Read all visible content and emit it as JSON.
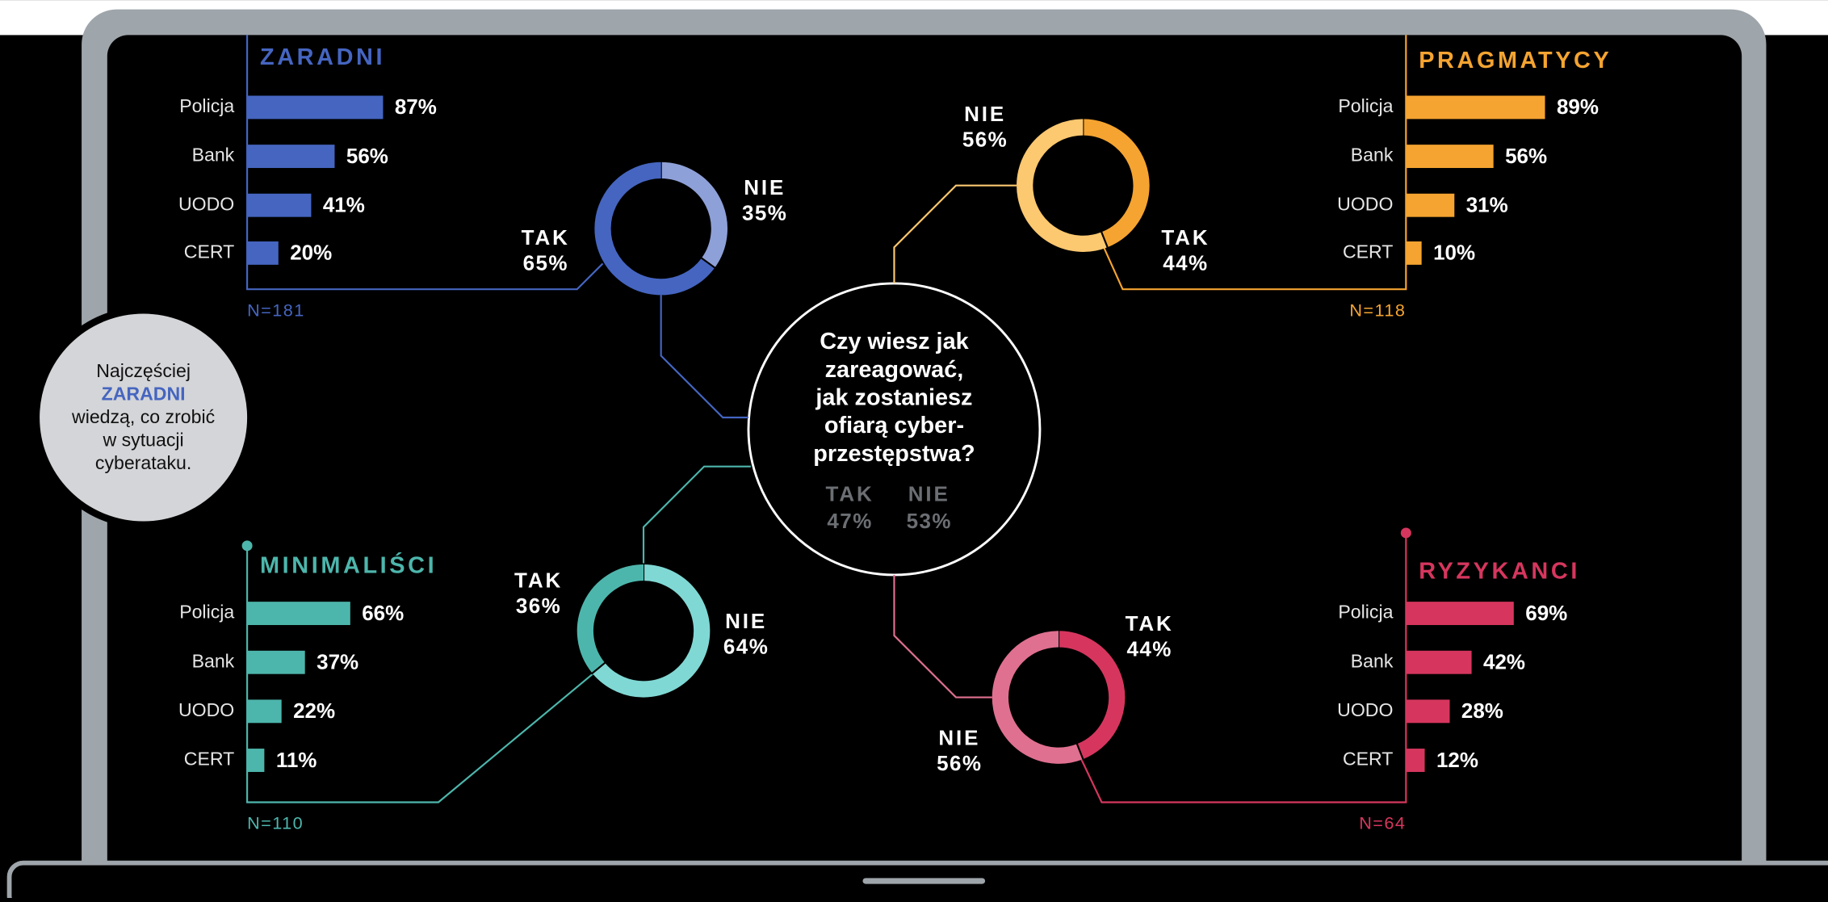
{
  "chart_data": [
    {
      "type": "bar",
      "title": "ZARADNI",
      "color": "#4565c0",
      "categories": [
        "Policja",
        "Bank",
        "UODO",
        "CERT"
      ],
      "values": [
        87,
        56,
        41,
        20
      ],
      "value_labels": [
        "87%",
        "56%",
        "41%",
        "20%"
      ],
      "n_label": "N=181"
    },
    {
      "type": "bar",
      "title": "PRAGMATYCY",
      "color": "#f5a431",
      "categories": [
        "Policja",
        "Bank",
        "UODO",
        "CERT"
      ],
      "values": [
        89,
        56,
        31,
        10
      ],
      "value_labels": [
        "89%",
        "56%",
        "31%",
        "10%"
      ],
      "n_label": "N=118"
    },
    {
      "type": "bar",
      "title": "MINIMALIŚCI",
      "color": "#4db6ac",
      "categories": [
        "Policja",
        "Bank",
        "UODO",
        "CERT"
      ],
      "values": [
        66,
        37,
        22,
        11
      ],
      "value_labels": [
        "66%",
        "37%",
        "22%",
        "11%"
      ],
      "n_label": "N=110"
    },
    {
      "type": "bar",
      "title": "RYZYKANCI",
      "color": "#d6365e",
      "categories": [
        "Policja",
        "Bank",
        "UODO",
        "CERT"
      ],
      "values": [
        69,
        42,
        28,
        12
      ],
      "value_labels": [
        "69%",
        "42%",
        "28%",
        "12%"
      ],
      "n_label": "N=64"
    },
    {
      "type": "donut",
      "categories": [
        "NIE",
        "TAK"
      ],
      "values": [
        35,
        65
      ],
      "value_labels": [
        "35%",
        "65%"
      ],
      "colors": [
        "#8ea0d8",
        "#4565c0"
      ]
    },
    {
      "type": "donut",
      "categories": [
        "TAK",
        "NIE"
      ],
      "values": [
        44,
        56
      ],
      "value_labels": [
        "44%",
        "56%"
      ],
      "colors": [
        "#f5a431",
        "#fcc870"
      ]
    },
    {
      "type": "donut",
      "categories": [
        "NIE",
        "TAK"
      ],
      "values": [
        64,
        36
      ],
      "value_labels": [
        "64%",
        "36%"
      ],
      "colors": [
        "#80d8d4",
        "#4db6ac"
      ]
    },
    {
      "type": "donut",
      "categories": [
        "TAK",
        "NIE"
      ],
      "values": [
        44,
        56
      ],
      "value_labels": [
        "44%",
        "56%"
      ],
      "colors": [
        "#d6365e",
        "#e07090"
      ]
    }
  ],
  "center": {
    "question": [
      "Czy wiesz jak",
      "zareagować,",
      "jak zostaniesz",
      "ofiarą cyber-",
      "przestępstwa?"
    ],
    "answers": [
      {
        "label": "TAK",
        "value": "47%"
      },
      {
        "label": "NIE",
        "value": "53%"
      }
    ]
  },
  "callout": {
    "lines": [
      "Najczęściej",
      "ZARADNI",
      "wiedzą, co zrobić",
      "w sytuacji",
      "cyberataku."
    ]
  }
}
